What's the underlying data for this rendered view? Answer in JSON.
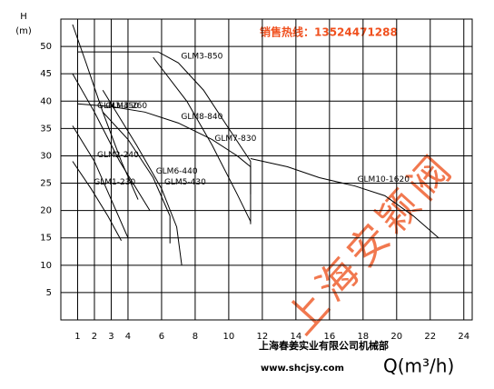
{
  "chart_data": {
    "type": "line",
    "y_label": "H",
    "y_unit": "(m)",
    "x_label": "Q(m³/h)",
    "hotline": "销售热线：13524471288",
    "company": "上海春姜实业有限公司机械部",
    "website": "www.shcjsy.com",
    "watermark": "上海安颖阀",
    "xlim": [
      0,
      24.5
    ],
    "ylim": [
      0,
      55
    ],
    "xticks": [
      1,
      2,
      3,
      4,
      6,
      8,
      10,
      12,
      14,
      16,
      18,
      20,
      22,
      24
    ],
    "yticks": [
      5,
      10,
      15,
      20,
      25,
      30,
      35,
      40,
      45,
      50
    ],
    "grid": true,
    "series": [
      {
        "name": "GLM4-260",
        "color": "#000000",
        "x": [
          0.7,
          1.5,
          2.5,
          3.6,
          4.6
        ],
        "values": [
          54,
          47,
          38,
          29,
          22
        ]
      },
      {
        "name": "GLM3-850",
        "color": "#000000",
        "x": [
          1,
          3,
          5.8,
          7,
          8.5,
          10,
          11.3,
          11.3
        ],
        "values": [
          49,
          49,
          49,
          47,
          42,
          35,
          29,
          23
        ]
      },
      {
        "name": "GLM3-350",
        "color": "#000000",
        "x": [
          0.7,
          2,
          3.5,
          5.3
        ],
        "values": [
          45,
          38,
          29,
          20
        ]
      },
      {
        "name": "GLM8-840",
        "color": "#000000",
        "x": [
          1,
          3,
          5,
          7,
          9,
          10.5,
          11.3,
          11.3
        ],
        "values": [
          39.5,
          39,
          38,
          36,
          33,
          30,
          28,
          17.5
        ]
      },
      {
        "name": "GLM2-240",
        "color": "#000000",
        "x": [
          0.7,
          2,
          3,
          4
        ],
        "values": [
          35.5,
          29,
          22,
          15
        ]
      },
      {
        "name": "GLM6-440",
        "color": "#000000",
        "x": [
          2.5,
          4,
          5.5,
          6.5,
          6.5
        ],
        "values": [
          38,
          33,
          26,
          19,
          14
        ]
      },
      {
        "name": "GLM7-830",
        "color": "#000000",
        "x": [
          5.5,
          7.5,
          9,
          10.5,
          11.3
        ],
        "values": [
          48,
          40,
          32,
          23,
          18
        ]
      },
      {
        "name": "GLM1-230",
        "color": "#000000",
        "x": [
          0.7,
          1.8,
          2.8,
          3.6
        ],
        "values": [
          29,
          24,
          19,
          14.5
        ]
      },
      {
        "name": "GLM5-430",
        "color": "#000000",
        "x": [
          2.5,
          4.5,
          6,
          6.9,
          7.2
        ],
        "values": [
          42,
          32,
          24,
          17,
          10
        ]
      },
      {
        "name": "GLM10-1620",
        "color": "#000000",
        "x": [
          11.3,
          13.5,
          15.4,
          17.5,
          19.3,
          21,
          22.5
        ],
        "values": [
          29.5,
          28,
          26,
          24.5,
          22.7,
          19,
          15
        ]
      }
    ]
  }
}
